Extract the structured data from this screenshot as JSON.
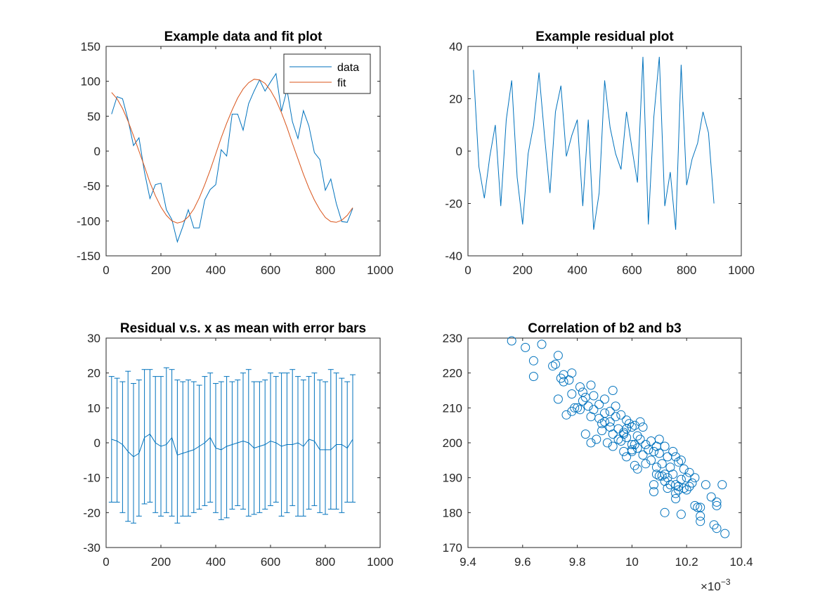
{
  "colors": {
    "series_blue": "#0072BD",
    "series_orange": "#D95319",
    "axes": "#262626",
    "background": "#ffffff"
  },
  "chart_data": [
    {
      "type": "line",
      "title": "Example data and fit plot",
      "xlabel": "",
      "ylabel": "",
      "xlim": [
        0,
        1000
      ],
      "ylim": [
        -150,
        150
      ],
      "xticks": [
        0,
        200,
        400,
        600,
        800,
        1000
      ],
      "yticks": [
        -150,
        -100,
        -50,
        0,
        50,
        100,
        150
      ],
      "grid": false,
      "legend": {
        "placement": "top-right",
        "entries": [
          "data",
          "fit"
        ]
      },
      "x": [
        20,
        40,
        60,
        80,
        100,
        120,
        140,
        160,
        180,
        200,
        220,
        240,
        260,
        280,
        300,
        320,
        340,
        360,
        380,
        400,
        420,
        440,
        460,
        480,
        500,
        520,
        540,
        560,
        580,
        600,
        620,
        640,
        660,
        680,
        700,
        720,
        740,
        760,
        780,
        800,
        820,
        840,
        860,
        880,
        900
      ],
      "series": [
        {
          "name": "data",
          "color": "#0072BD",
          "values": [
            53,
            78,
            75,
            45,
            8,
            19,
            -30,
            -68,
            -48,
            -46,
            -84,
            -98,
            -130,
            -108,
            -84,
            -110,
            -110,
            -70,
            -55,
            -48,
            2,
            -7,
            53,
            53,
            30,
            68,
            86,
            102,
            86,
            99,
            111,
            57,
            88,
            42,
            18,
            58,
            36,
            -2,
            -12,
            -56,
            -40,
            -75,
            -101,
            -102,
            -82
          ]
        },
        {
          "name": "fit",
          "color": "#D95319",
          "values": [
            84,
            75,
            61,
            43,
            22,
            0,
            -22,
            -45,
            -64,
            -80,
            -92,
            -100,
            -103,
            -101,
            -94,
            -83,
            -67,
            -48,
            -27,
            -4,
            19,
            40,
            59,
            76,
            89,
            98,
            103,
            102,
            97,
            87,
            73,
            55,
            34,
            11,
            -11,
            -33,
            -53,
            -70,
            -84,
            -95,
            -101,
            -102,
            -99,
            -92,
            -81
          ]
        }
      ]
    },
    {
      "type": "line",
      "title": "Example residual plot",
      "xlabel": "",
      "ylabel": "",
      "xlim": [
        0,
        1000
      ],
      "ylim": [
        -40,
        40
      ],
      "xticks": [
        0,
        200,
        400,
        600,
        800,
        1000
      ],
      "yticks": [
        -40,
        -20,
        0,
        20,
        40
      ],
      "grid": false,
      "x": [
        20,
        40,
        60,
        80,
        100,
        120,
        140,
        160,
        180,
        200,
        220,
        240,
        260,
        280,
        300,
        320,
        340,
        360,
        380,
        400,
        420,
        440,
        460,
        480,
        500,
        520,
        540,
        560,
        580,
        600,
        620,
        640,
        660,
        680,
        700,
        720,
        740,
        760,
        780,
        800,
        820,
        840,
        860,
        880,
        900
      ],
      "series": [
        {
          "color": "#0072BD",
          "values": [
            31,
            -6,
            -18,
            -2,
            10,
            -21,
            12,
            27,
            -10,
            -28,
            -1,
            10,
            30,
            6,
            -16,
            15,
            25,
            -2,
            6,
            12,
            -21,
            12,
            -30,
            -16,
            27,
            9,
            -1,
            -7,
            15,
            1,
            -12,
            36,
            -28,
            13,
            36,
            -21,
            -8,
            -30,
            33,
            -13,
            -3,
            3,
            15,
            7,
            -20
          ]
        }
      ]
    },
    {
      "type": "errorbar",
      "title": "Residual v.s. x as mean with error bars",
      "xlabel": "",
      "ylabel": "",
      "xlim": [
        0,
        1000
      ],
      "ylim": [
        -30,
        30
      ],
      "xticks": [
        0,
        200,
        400,
        600,
        800,
        1000
      ],
      "yticks": [
        -30,
        -20,
        -10,
        0,
        10,
        20,
        30
      ],
      "grid": false,
      "x": [
        20,
        40,
        60,
        80,
        100,
        120,
        140,
        160,
        180,
        200,
        220,
        240,
        260,
        280,
        300,
        320,
        340,
        360,
        380,
        400,
        420,
        440,
        460,
        480,
        500,
        520,
        540,
        560,
        580,
        600,
        620,
        640,
        660,
        680,
        700,
        720,
        740,
        760,
        780,
        800,
        820,
        840,
        860,
        880,
        900
      ],
      "series": [
        {
          "color": "#0072BD",
          "mean": [
            1,
            0.5,
            -0.5,
            -2.5,
            -4,
            -3,
            1.5,
            2.5,
            0,
            -1,
            -0.5,
            1.5,
            -3.5,
            -3,
            -2.5,
            -2,
            -1,
            0,
            1.5,
            -1.5,
            -2,
            -1,
            -0.5,
            0,
            0.5,
            0,
            -1.5,
            -1,
            -0.5,
            0.5,
            0,
            -1,
            -0.5,
            -0.5,
            0,
            -1,
            1,
            0.5,
            -2,
            -2,
            -2,
            -0.5,
            -0.5,
            -1.5,
            1
          ],
          "lower": [
            -17,
            -17,
            -20,
            -22.5,
            -23,
            -21,
            -17.5,
            -17,
            -20,
            -21,
            -20,
            -21,
            -23,
            -21,
            -21,
            -20,
            -19,
            -18,
            -17,
            -20,
            -22,
            -21.5,
            -19,
            -18,
            -19,
            -21,
            -20.5,
            -20,
            -19,
            -18,
            -17,
            -21,
            -20,
            -18,
            -21,
            -21,
            -19,
            -18,
            -20,
            -20.5,
            -19,
            -19,
            -20,
            -17,
            -17
          ],
          "upper": [
            19,
            18.5,
            17.5,
            20.5,
            17,
            18,
            21,
            21,
            19,
            19,
            21.5,
            21,
            18,
            17.5,
            18,
            17.5,
            16.5,
            19,
            20,
            17,
            17.5,
            19,
            17.5,
            18,
            20,
            21,
            17.5,
            17.5,
            18,
            20,
            19,
            20,
            20,
            21,
            19,
            18,
            19,
            20,
            18,
            17.5,
            21,
            20,
            18.5,
            17.5,
            19.5
          ]
        }
      ]
    },
    {
      "type": "scatter",
      "title": "Correlation of b2 and b3",
      "xlabel": "",
      "ylabel": "",
      "xlim": [
        0.0094,
        0.0104
      ],
      "ylim": [
        170,
        230
      ],
      "xtick_labels": [
        "9.4",
        "9.6",
        "9.8",
        "10",
        "10.2",
        "10.4"
      ],
      "x_exponent_base": "×10",
      "x_exponent_power": "−3",
      "yticks": [
        170,
        180,
        190,
        200,
        210,
        220,
        230
      ],
      "grid": false,
      "marker": "circle-open",
      "series": [
        {
          "color": "#0072BD",
          "points": [
            [
              0.00956,
              229.2
            ],
            [
              0.00967,
              228.2
            ],
            [
              0.00961,
              227.3
            ],
            [
              0.00964,
              223.5
            ],
            [
              0.00964,
              219
            ],
            [
              0.00973,
              225
            ],
            [
              0.00972,
              222.5
            ],
            [
              0.00971,
              222
            ],
            [
              0.00978,
              220
            ],
            [
              0.00977,
              218
            ],
            [
              0.00975,
              219.5
            ],
            [
              0.00975,
              217.5
            ],
            [
              0.00973,
              212.5
            ],
            [
              0.00976,
              208
            ],
            [
              0.00978,
              209
            ],
            [
              0.0098,
              210
            ],
            [
              0.00981,
              216
            ],
            [
              0.00982,
              214.5
            ],
            [
              0.00983,
              213
            ],
            [
              0.00985,
              216.5
            ],
            [
              0.00986,
              213.5
            ],
            [
              0.00982,
              212
            ],
            [
              0.00984,
              210.5
            ],
            [
              0.00986,
              209.5
            ],
            [
              0.00988,
              211
            ],
            [
              0.0099,
              208.5
            ],
            [
              0.00988,
              207
            ],
            [
              0.0099,
              212.5
            ],
            [
              0.00992,
              209
            ],
            [
              0.00994,
              210.5
            ],
            [
              0.00992,
              206
            ],
            [
              0.00994,
              207.5
            ],
            [
              0.00996,
              208
            ],
            [
              0.00998,
              206.5
            ],
            [
              0.00998,
              204
            ],
            [
              0.01,
              204.5
            ],
            [
              0.00993,
              215
            ],
            [
              0.00989,
              205.5
            ],
            [
              0.00989,
              203.5
            ],
            [
              0.00987,
              201
            ],
            [
              0.00983,
              202.5
            ],
            [
              0.00985,
              200
            ],
            [
              0.00991,
              200
            ],
            [
              0.00993,
              199
            ],
            [
              0.00995,
              201
            ],
            [
              0.00997,
              202.5
            ],
            [
              0.00999,
              205.5
            ],
            [
              0.01001,
              205
            ],
            [
              0.01003,
              206
            ],
            [
              0.01004,
              204.5
            ],
            [
              0.01002,
              202
            ],
            [
              0.01001,
              199.5
            ],
            [
              0.01,
              198
            ],
            [
              0.00997,
              197.5
            ],
            [
              0.00996,
              200.5
            ],
            [
              0.00993,
              202.5
            ],
            [
              0.00995,
              204
            ],
            [
              0.00998,
              201.5
            ],
            [
              0.01,
              199.5
            ],
            [
              0.01003,
              201
            ],
            [
              0.01005,
              199.5
            ],
            [
              0.01007,
              200.5
            ],
            [
              0.01009,
              199
            ],
            [
              0.0101,
              201
            ],
            [
              0.01012,
              199
            ],
            [
              0.0101,
              197
            ],
            [
              0.01008,
              197.5
            ],
            [
              0.01006,
              198
            ],
            [
              0.01004,
              196.5
            ],
            [
              0.01002,
              198.5
            ],
            [
              0.01,
              197.5
            ],
            [
              0.00998,
              196
            ],
            [
              0.01001,
              193.5
            ],
            [
              0.01002,
              192.5
            ],
            [
              0.01005,
              194
            ],
            [
              0.01007,
              195
            ],
            [
              0.01009,
              193
            ],
            [
              0.01011,
              194
            ],
            [
              0.01013,
              196
            ],
            [
              0.01015,
              197.5
            ],
            [
              0.01016,
              196
            ],
            [
              0.01017,
              194.5
            ],
            [
              0.01018,
              195
            ],
            [
              0.01014,
              193
            ],
            [
              0.01012,
              191
            ],
            [
              0.0101,
              190.5
            ],
            [
              0.01013,
              190
            ],
            [
              0.01015,
              191
            ],
            [
              0.01016,
              188
            ],
            [
              0.01017,
              186.5
            ],
            [
              0.01018,
              189.5
            ],
            [
              0.0102,
              190
            ],
            [
              0.01021,
              191.5
            ],
            [
              0.01019,
              192.5
            ],
            [
              0.01022,
              188.5
            ],
            [
              0.01023,
              190
            ],
            [
              0.01021,
              187.5
            ],
            [
              0.01019,
              187
            ],
            [
              0.01016,
              185.5
            ],
            [
              0.01013,
              187
            ],
            [
              0.01012,
              189
            ],
            [
              0.01008,
              186
            ],
            [
              0.01008,
              188
            ],
            [
              0.01009,
              191
            ],
            [
              0.01011,
              190.5
            ],
            [
              0.01014,
              188
            ],
            [
              0.01017,
              187.5
            ],
            [
              0.0102,
              186.5
            ],
            [
              0.01023,
              182
            ],
            [
              0.01024,
              181.5
            ],
            [
              0.01025,
              181.5
            ],
            [
              0.01025,
              179
            ],
            [
              0.01025,
              177.5
            ],
            [
              0.01029,
              184.5
            ],
            [
              0.0103,
              176.5
            ],
            [
              0.01031,
              175.5
            ],
            [
              0.01031,
              183
            ],
            [
              0.01033,
              188
            ],
            [
              0.01034,
              174
            ],
            [
              0.01027,
              188
            ],
            [
              0.01031,
              182
            ],
            [
              0.01018,
              179.5
            ],
            [
              0.01012,
              180
            ],
            [
              0.01016,
              184
            ],
            [
              0.00978,
              214
            ],
            [
              0.00974,
              218.5
            ],
            [
              0.00985,
              207.5
            ],
            [
              0.0099,
              206
            ],
            [
              0.00981,
              209.5
            ],
            [
              0.00979,
              210
            ],
            [
              0.00992,
              204.5
            ],
            [
              0.00997,
              203
            ]
          ]
        }
      ]
    }
  ]
}
